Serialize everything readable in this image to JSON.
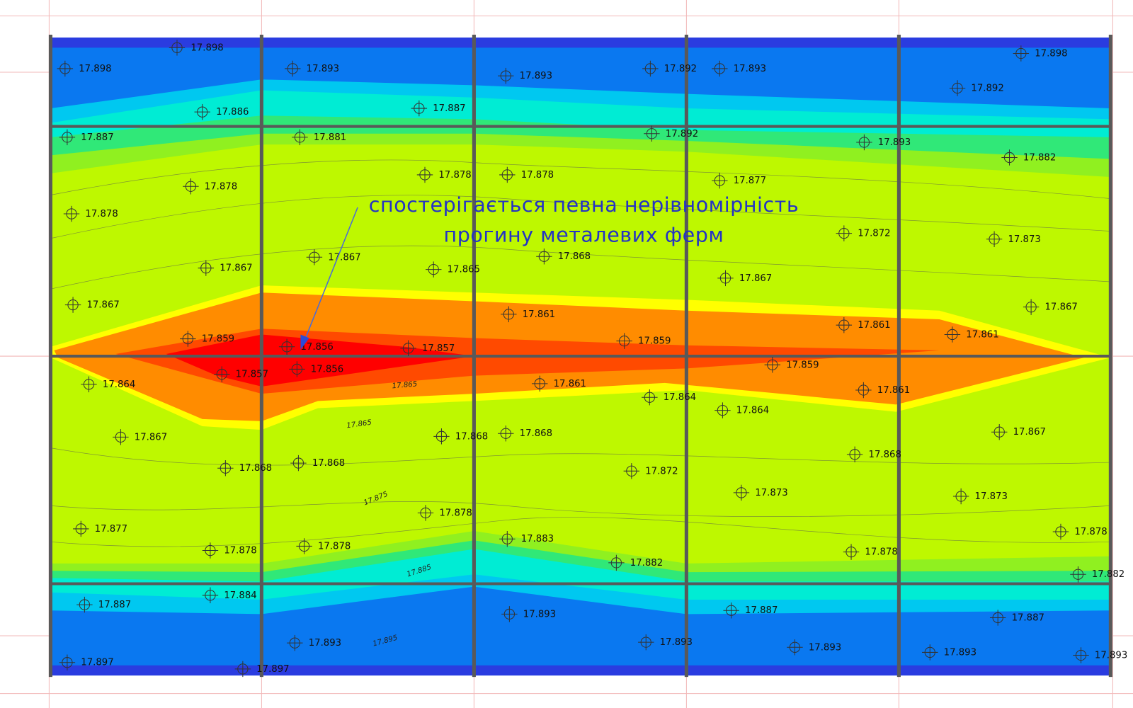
{
  "points": [
    {
      "label": "17.898"
    },
    {
      "label": "17.886"
    },
    {
      "label": "17.887"
    },
    {
      "label": "17.893"
    },
    {
      "label": "17.887"
    },
    {
      "label": "17.881"
    },
    {
      "label": "17.893"
    },
    {
      "label": "17.892"
    },
    {
      "label": "17.893"
    },
    {
      "label": "17.892"
    },
    {
      "label": "17.892"
    },
    {
      "label": "17.893"
    },
    {
      "label": "17.882"
    },
    {
      "label": "17.878"
    },
    {
      "label": "17.878"
    },
    {
      "label": "17.878"
    },
    {
      "label": "17.878"
    },
    {
      "label": "17.877"
    },
    {
      "label": "17.872"
    },
    {
      "label": "17.873"
    },
    {
      "label": "17.867"
    },
    {
      "label": "17.867"
    },
    {
      "label": "17.865"
    },
    {
      "label": "17.868"
    },
    {
      "label": "17.867"
    },
    {
      "label": "17.867"
    },
    {
      "label": "17.867"
    },
    {
      "label": "17.859"
    },
    {
      "label": "17.861"
    },
    {
      "label": "17.859"
    },
    {
      "label": "17.861"
    },
    {
      "label": "17.861"
    },
    {
      "label": "17.856"
    },
    {
      "label": "17.857"
    },
    {
      "label": "17.857"
    },
    {
      "label": "17.856"
    },
    {
      "label": "17.859"
    },
    {
      "label": "17.864"
    },
    {
      "label": "17.861"
    },
    {
      "label": "17.864"
    },
    {
      "label": "17.861"
    },
    {
      "label": "17.864"
    },
    {
      "label": "17.867"
    },
    {
      "label": "17.868"
    },
    {
      "label": "17.868"
    },
    {
      "label": "17.867"
    },
    {
      "label": "17.868"
    },
    {
      "label": "17.868"
    },
    {
      "label": "17.868"
    },
    {
      "label": "17.872"
    },
    {
      "label": "17.873"
    },
    {
      "label": "17.873"
    },
    {
      "label": "17.877"
    },
    {
      "label": "17.878"
    },
    {
      "label": "17.878"
    },
    {
      "label": "17.878"
    },
    {
      "label": "17.883"
    },
    {
      "label": "17.882"
    },
    {
      "label": "17.878"
    },
    {
      "label": "17.878"
    },
    {
      "label": "17.882"
    },
    {
      "label": "17.887"
    },
    {
      "label": "17.884"
    },
    {
      "label": "17.893"
    },
    {
      "label": "17.887"
    },
    {
      "label": "17.887"
    },
    {
      "label": "17.893"
    },
    {
      "label": "17.893"
    },
    {
      "label": "17.893"
    },
    {
      "label": "17.893"
    },
    {
      "label": "17.893"
    },
    {
      "label": "17.897"
    },
    {
      "label": "17.897"
    },
    {
      "label": "17.898"
    },
    {
      "label": "17.898"
    }
  ],
  "contour_labels": [
    "17.865",
    "17.865",
    "17.875",
    "17.885",
    "17.895"
  ],
  "annotation": {
    "lines": [
      "спостерігається певна нерівномірність",
      "прогину металевих ферм"
    ]
  }
}
